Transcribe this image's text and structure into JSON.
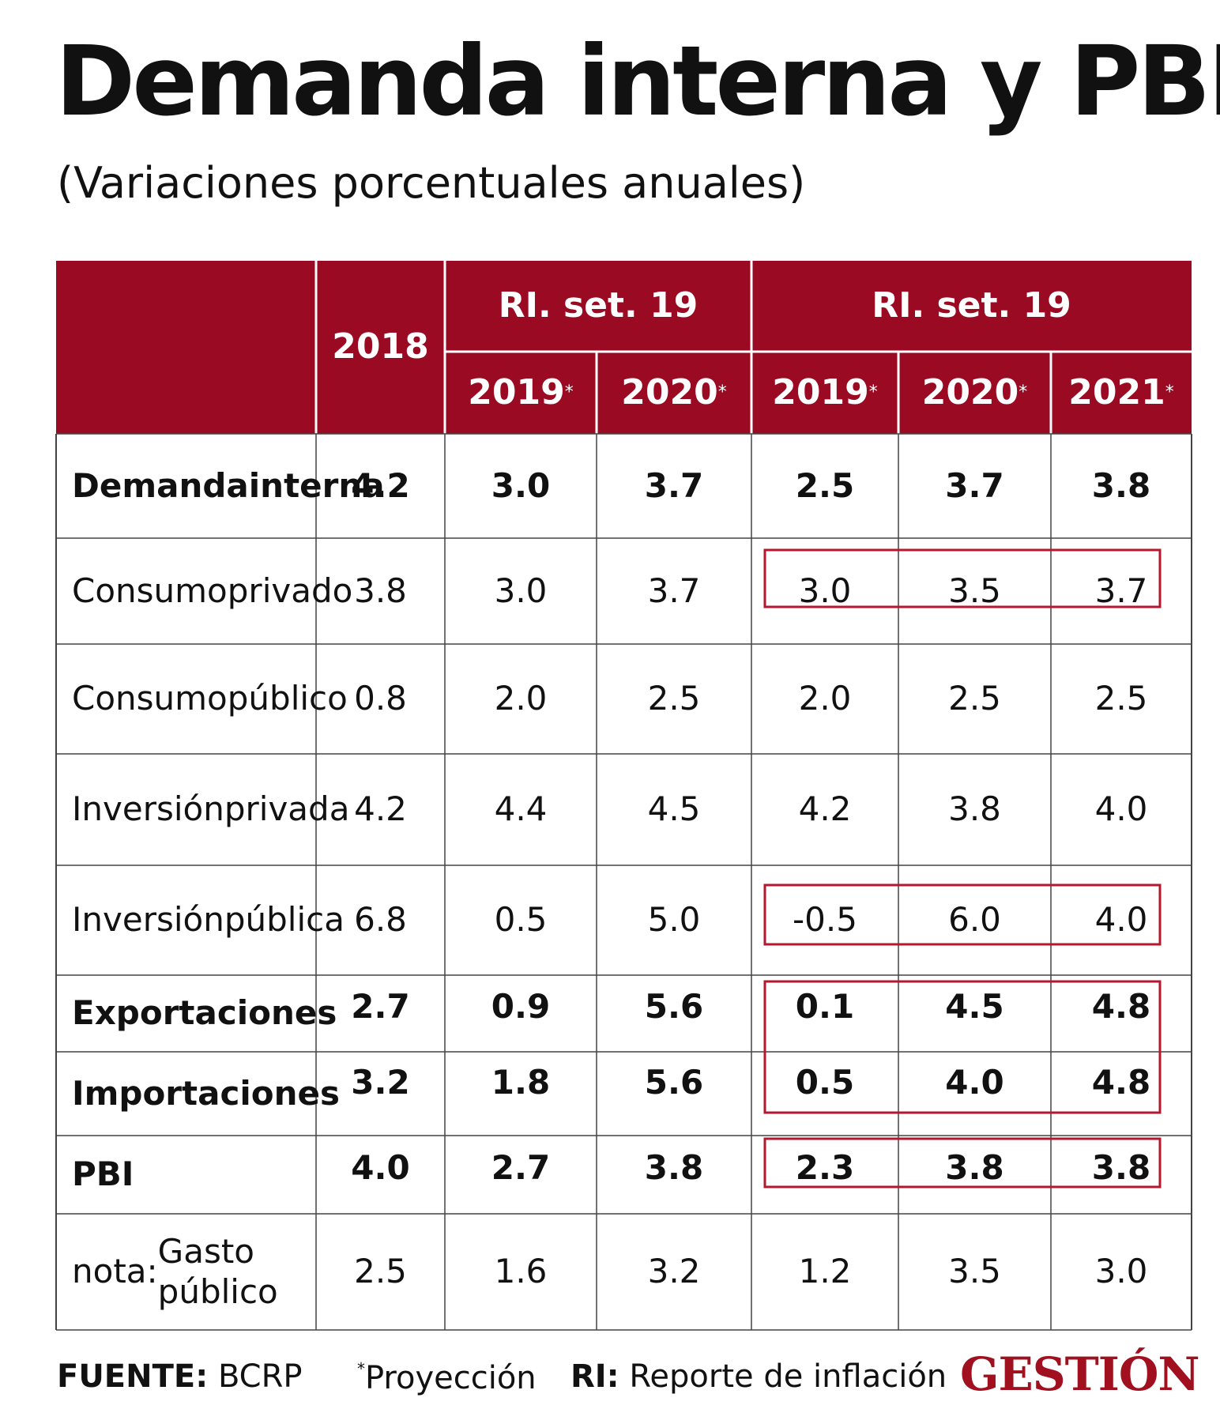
{
  "title": "Demanda interna y PBI",
  "subtitle": "(Variaciones porcentuales anuales)",
  "colors": {
    "header_bg": "#9a0a22",
    "header_text": "#ffffff",
    "grid": "#444444",
    "highlight": "#b3182f"
  },
  "chart_data": {
    "type": "table",
    "header": {
      "year_2018": "2018",
      "group1_label": "RI. set. 19",
      "group2_label": "RI. set. 19",
      "sub_columns": [
        {
          "year": "2019",
          "mark": "*"
        },
        {
          "year": "2020",
          "mark": "*"
        },
        {
          "year": "2019",
          "mark": "*"
        },
        {
          "year": "2020",
          "mark": "*"
        },
        {
          "year": "2021",
          "mark": "*"
        }
      ]
    },
    "rows": [
      {
        "label": [
          "Demanda",
          "interna"
        ],
        "bold": true,
        "values": [
          "4.2",
          "3.0",
          "3.7",
          "2.5",
          "3.7",
          "3.8"
        ]
      },
      {
        "label": [
          "Consumo",
          "privado"
        ],
        "bold": false,
        "values": [
          "3.8",
          "3.0",
          "3.7",
          "3.0",
          "3.5",
          "3.7"
        ]
      },
      {
        "label": [
          "Consumo",
          "público"
        ],
        "bold": false,
        "values": [
          "0.8",
          "2.0",
          "2.5",
          "2.0",
          "2.5",
          "2.5"
        ]
      },
      {
        "label": [
          "Inversión",
          "privada"
        ],
        "bold": false,
        "values": [
          "4.2",
          "4.4",
          "4.5",
          "4.2",
          "3.8",
          "4.0"
        ]
      },
      {
        "label": [
          "Inversión",
          "pública"
        ],
        "bold": false,
        "values": [
          "6.8",
          "0.5",
          "5.0",
          "-0.5",
          "6.0",
          "4.0"
        ]
      },
      {
        "label": [
          "Exportaciones"
        ],
        "bold": true,
        "values": [
          "2.7",
          "0.9",
          "5.6",
          "0.1",
          "4.5",
          "4.8"
        ]
      },
      {
        "label": [
          "Importaciones"
        ],
        "bold": true,
        "values": [
          "3.2",
          "1.8",
          "5.6",
          "0.5",
          "4.0",
          "4.8"
        ]
      },
      {
        "label": [
          "PBI"
        ],
        "bold": true,
        "values": [
          "4.0",
          "2.7",
          "3.8",
          "2.3",
          "3.8",
          "3.8"
        ]
      },
      {
        "label": [
          "nota:",
          "Gasto público"
        ],
        "bold": false,
        "values": [
          "2.5",
          "1.6",
          "3.2",
          "1.2",
          "3.5",
          "3.0"
        ]
      }
    ],
    "highlighted_row_groups": [
      [
        1
      ],
      [
        4
      ],
      [
        5,
        6
      ],
      [
        7
      ]
    ],
    "highlighted_columns": [
      3,
      4,
      5
    ]
  },
  "footer": {
    "source_label": "FUENTE:",
    "source_value": "BCRP",
    "projection_mark": "*",
    "projection_text": "Proyección",
    "ri_label": "RI:",
    "ri_text": "Reporte de inflación",
    "brand": "GESTIÓN"
  }
}
